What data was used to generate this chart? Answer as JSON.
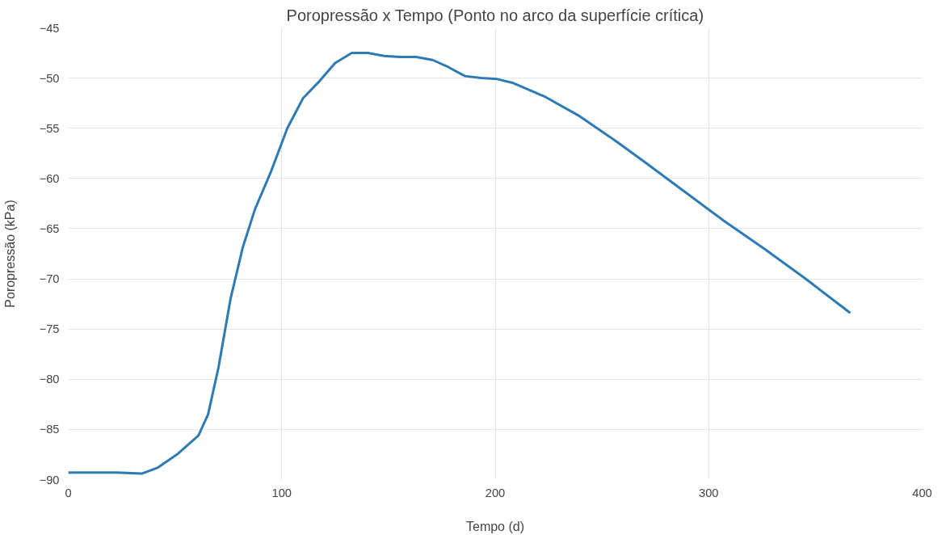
{
  "chart_data": {
    "type": "line",
    "title": "Poropressão x Tempo (Ponto no arco da superfície crítica)",
    "xlabel": "Tempo (d)",
    "ylabel": "Poropressão (kPa)",
    "x": [
      0,
      23,
      34.4,
      42,
      51.5,
      61,
      65.5,
      70.4,
      76,
      81.7,
      87.4,
      95,
      102.6,
      110,
      117.7,
      125,
      132.8,
      140.4,
      148,
      155.5,
      163,
      170.7,
      178,
      185.8,
      193.4,
      201,
      208.5,
      223.7,
      238.8,
      254,
      269,
      288,
      307,
      326,
      344.8,
      366.3
    ],
    "series": [
      {
        "color": "#2e7bb4",
        "values": [
          -89.3,
          -89.3,
          -89.4,
          -88.8,
          -87.4,
          -85.6,
          -83.5,
          -78.8,
          -72,
          -66.9,
          -63.1,
          -59.3,
          -55,
          -52,
          -50.3,
          -48.5,
          -47.5,
          -47.5,
          -47.8,
          -47.9,
          -47.9,
          -48.2,
          -48.9,
          -49.8,
          -50,
          -50.1,
          -50.5,
          -51.9,
          -53.7,
          -55.9,
          -58.2,
          -61.2,
          -64.2,
          -67,
          -69.9,
          -73.4
        ]
      }
    ],
    "xlim": [
      0,
      400
    ],
    "xticks": [
      0,
      100,
      200,
      300,
      400
    ],
    "ylim": [
      -90,
      -45
    ],
    "yticks": [
      -90,
      -85,
      -80,
      -75,
      -70,
      -65,
      -60,
      -55,
      -50,
      -45
    ],
    "grid": true,
    "marker": "none",
    "line_style": "solid"
  }
}
